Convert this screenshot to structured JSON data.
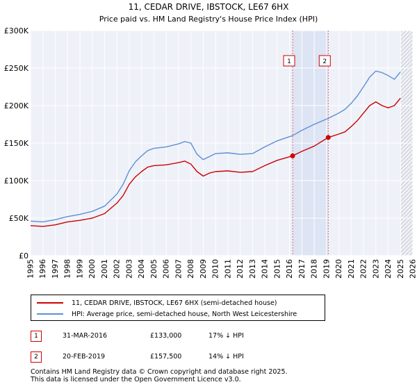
{
  "chart_data": {
    "type": "line",
    "title": "11, CEDAR DRIVE, IBSTOCK, LE67 6HX",
    "subtitle": "Price paid vs. HM Land Registry's House Price Index (HPI)",
    "xlim": [
      1995,
      2026
    ],
    "ylim": [
      0,
      300000
    ],
    "y_ticks": [
      0,
      50000,
      100000,
      150000,
      200000,
      250000,
      300000
    ],
    "y_tick_labels": [
      "£0",
      "£50K",
      "£100K",
      "£150K",
      "£200K",
      "£250K",
      "£300K"
    ],
    "x_ticks": [
      1995,
      1996,
      1997,
      1998,
      1999,
      2000,
      2001,
      2002,
      2003,
      2004,
      2005,
      2006,
      2007,
      2008,
      2009,
      2010,
      2011,
      2012,
      2013,
      2014,
      2015,
      2016,
      2017,
      2018,
      2019,
      2020,
      2021,
      2022,
      2023,
      2024,
      2025,
      2026
    ],
    "x_tick_labels": [
      "1995",
      "1996",
      "1997",
      "1998",
      "1999",
      "2000",
      "2001",
      "2002",
      "2003",
      "2004",
      "2005",
      "2006",
      "2007",
      "2008",
      "2009",
      "2010",
      "2011",
      "2012",
      "2013",
      "2014",
      "2015",
      "2016",
      "2017",
      "2018",
      "2019",
      "2020",
      "2021",
      "2022",
      "2023",
      "2024",
      "2025",
      "2026"
    ],
    "grid": true,
    "shaded_period": [
      2016.25,
      2019.14
    ],
    "projection_start": 2025.0,
    "series": [
      {
        "name": "11, CEDAR DRIVE, IBSTOCK, LE67 6HX (semi-detached house)",
        "color": "#cc0000",
        "x": [
          1995.0,
          1996.0,
          1997.0,
          1998.0,
          1999.0,
          2000.0,
          2001.0,
          2002.0,
          2002.5,
          2003.0,
          2003.5,
          2004.0,
          2004.5,
          2005.0,
          2006.0,
          2007.0,
          2007.5,
          2008.0,
          2008.5,
          2009.0,
          2009.5,
          2010.0,
          2011.0,
          2012.0,
          2013.0,
          2014.0,
          2015.0,
          2016.25,
          2017.0,
          2018.0,
          2019.14,
          2020.0,
          2020.5,
          2021.0,
          2021.5,
          2022.0,
          2022.5,
          2023.0,
          2023.5,
          2024.0,
          2024.5,
          2025.0
        ],
        "values": [
          40000,
          39000,
          41000,
          45000,
          47000,
          50000,
          56000,
          70000,
          80000,
          95000,
          105000,
          112000,
          118000,
          120000,
          121000,
          124000,
          126000,
          122000,
          112000,
          106000,
          110000,
          112000,
          113000,
          111000,
          112000,
          120000,
          127000,
          133000,
          139000,
          146000,
          157500,
          162000,
          165000,
          172000,
          180000,
          190000,
          200000,
          205000,
          200000,
          197000,
          200000,
          210000
        ]
      },
      {
        "name": "HPI: Average price, semi-detached house, North West Leicestershire",
        "color": "#5b8fd4",
        "x": [
          1995.0,
          1996.0,
          1997.0,
          1998.0,
          1999.0,
          2000.0,
          2001.0,
          2002.0,
          2002.5,
          2003.0,
          2003.5,
          2004.0,
          2004.5,
          2005.0,
          2006.0,
          2007.0,
          2007.5,
          2008.0,
          2008.5,
          2009.0,
          2009.5,
          2010.0,
          2011.0,
          2012.0,
          2013.0,
          2014.0,
          2015.0,
          2016.25,
          2017.0,
          2018.0,
          2019.14,
          2020.0,
          2020.5,
          2021.0,
          2021.5,
          2022.0,
          2022.5,
          2023.0,
          2023.5,
          2024.0,
          2024.5,
          2025.0
        ],
        "values": [
          46000,
          45000,
          48000,
          52000,
          55000,
          59000,
          66000,
          82000,
          95000,
          113000,
          125000,
          133000,
          140000,
          143000,
          145000,
          149000,
          152000,
          150000,
          135000,
          128000,
          132000,
          136000,
          137000,
          135000,
          136000,
          145000,
          153000,
          160000,
          167000,
          175000,
          183000,
          190000,
          195000,
          203000,
          213000,
          225000,
          238000,
          246000,
          244000,
          240000,
          235000,
          245000
        ]
      }
    ],
    "annotations": [
      {
        "label": "1",
        "x": 2016.25,
        "value": 133000
      },
      {
        "label": "2",
        "x": 2019.14,
        "value": 157500
      }
    ]
  },
  "legend": {
    "items": [
      {
        "label": "11, CEDAR DRIVE, IBSTOCK, LE67 6HX (semi-detached house)",
        "color": "#cc0000"
      },
      {
        "label": "HPI: Average price, semi-detached house, North West Leicestershire",
        "color": "#5b8fd4"
      }
    ]
  },
  "transactions": [
    {
      "badge": "1",
      "date": "31-MAR-2016",
      "price": "£133,000",
      "hpi_diff": "17% ↓ HPI"
    },
    {
      "badge": "2",
      "date": "20-FEB-2019",
      "price": "£157,500",
      "hpi_diff": "14% ↓ HPI"
    }
  ],
  "footer": {
    "line1": "Contains HM Land Registry data © Crown copyright and database right 2025.",
    "line2": "This data is licensed under the Open Government Licence v3.0."
  }
}
